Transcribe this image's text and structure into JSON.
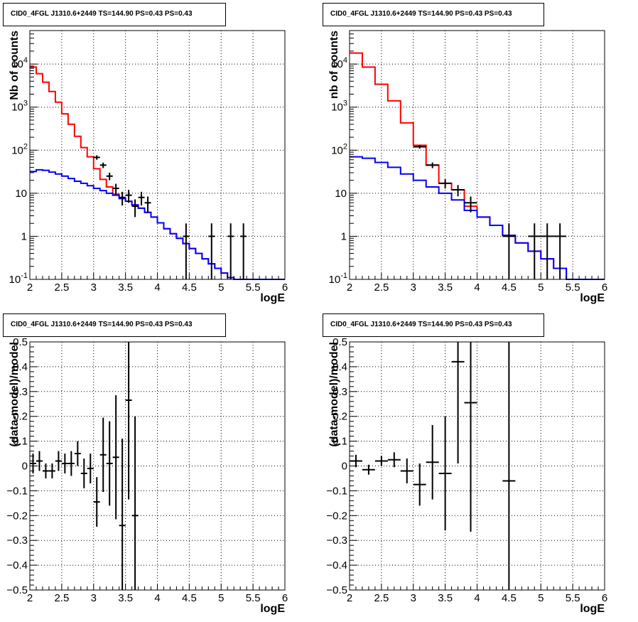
{
  "chart_data": [
    {
      "type": "histogram",
      "title": "CID0_4FGL J1310.6+2449 TS=144.90 PS=0.43 PS=0.43",
      "xlabel": "logE",
      "ylabel": "Nb of counts",
      "xlim": [
        2,
        6
      ],
      "ylim": [
        0.1,
        60000
      ],
      "ylog": true,
      "grid": true,
      "xticks": [
        "2",
        "2.5",
        "3",
        "3.5",
        "4",
        "4.5",
        "5",
        "5.5",
        "6"
      ],
      "yticks": [
        "10^-1",
        "1",
        "10",
        "10^2",
        "10^3",
        "10^4"
      ],
      "bin_width": 0.1,
      "series": [
        {
          "color": "#ff0000",
          "style": "step",
          "x": [
            2.0,
            2.1,
            2.2,
            2.3,
            2.4,
            2.5,
            2.6,
            2.7,
            2.8,
            2.9,
            3.0,
            3.1,
            3.2,
            3.3,
            3.4,
            3.5,
            3.6,
            3.7,
            3.8,
            3.9,
            4.0,
            4.1,
            4.2,
            4.3,
            4.4,
            4.5,
            4.6,
            4.7,
            4.8,
            4.9,
            5.0,
            5.1,
            5.2,
            5.3,
            5.4,
            5.5,
            5.6,
            5.7,
            5.8,
            5.9
          ],
          "values": [
            8500,
            6000,
            3800,
            2300,
            1300,
            700,
            400,
            210,
            115,
            70,
            37,
            21,
            14,
            9.5,
            7.8,
            6.5,
            5.4,
            4.5,
            3.6,
            2.8,
            2.05,
            1.5,
            1.15,
            0.9,
            0.68,
            0.52,
            0.4,
            0.3,
            0.23,
            0.18,
            0.14,
            0.11,
            0.1,
            0.1,
            0.1,
            0.1,
            0.1,
            0.1,
            0.1,
            0.1
          ]
        },
        {
          "color": "#0000ff",
          "style": "step",
          "x": [
            2.0,
            2.1,
            2.2,
            2.3,
            2.4,
            2.5,
            2.6,
            2.7,
            2.8,
            2.9,
            3.0,
            3.1,
            3.2,
            3.3,
            3.4,
            3.5,
            3.6,
            3.7,
            3.8,
            3.9,
            4.0,
            4.1,
            4.2,
            4.3,
            4.4,
            4.5,
            4.6,
            4.7,
            4.8,
            4.9,
            5.0,
            5.1,
            5.2,
            5.3,
            5.4,
            5.5,
            5.6,
            5.7,
            5.8,
            5.9
          ],
          "values": [
            32,
            35,
            34,
            31,
            28,
            25,
            22,
            19,
            17,
            15,
            13,
            11.5,
            10,
            9,
            7.5,
            6.5,
            5.3,
            4.5,
            3.6,
            2.8,
            2.05,
            1.5,
            1.15,
            0.9,
            0.68,
            0.52,
            0.4,
            0.3,
            0.23,
            0.18,
            0.14,
            0.11,
            0.1,
            0.1,
            0.1,
            0.1,
            0.1,
            0.1,
            0.1,
            0.1
          ]
        },
        {
          "color": "#000000",
          "style": "points",
          "x": [
            3.05,
            3.15,
            3.25,
            3.35,
            3.45,
            3.55,
            3.65,
            3.75,
            3.85,
            4.45,
            4.85,
            5.15,
            5.35
          ],
          "values": [
            68,
            45,
            25,
            13,
            8,
            9,
            5,
            8,
            6,
            1,
            1,
            1,
            1
          ],
          "errors": [
            8,
            6.5,
            5,
            3.6,
            2.8,
            3,
            2.2,
            2.8,
            2.4,
            1,
            1,
            1,
            1
          ]
        }
      ]
    },
    {
      "type": "histogram",
      "title": "CID0_4FGL J1310.6+2449 TS=144.90 PS=0.43 PS=0.43",
      "xlabel": "logE",
      "ylabel": "nb of counts",
      "xlim": [
        2,
        6
      ],
      "ylim": [
        0.1,
        60000
      ],
      "ylog": true,
      "grid": true,
      "xticks": [
        "2",
        "2.5",
        "3",
        "3.5",
        "4",
        "4.5",
        "5",
        "5.5",
        "6"
      ],
      "yticks": [
        "10^-1",
        "1",
        "10",
        "10^2",
        "10^3",
        "10^4"
      ],
      "bin_width": 0.2,
      "series": [
        {
          "color": "#ff0000",
          "style": "step",
          "x": [
            2.0,
            2.2,
            2.4,
            2.6,
            2.8,
            3.0,
            3.2,
            3.4,
            3.6,
            3.8,
            4.0,
            4.2,
            4.4,
            4.6,
            4.8,
            5.0,
            5.2,
            5.4,
            5.6,
            5.8
          ],
          "values": [
            18000,
            8500,
            3400,
            1400,
            430,
            130,
            45,
            17,
            12,
            5,
            2.8,
            1.8,
            1.05,
            0.7,
            0.45,
            0.3,
            0.18,
            0.1,
            0.1,
            0.1
          ]
        },
        {
          "color": "#0000ff",
          "style": "step",
          "x": [
            2.0,
            2.2,
            2.4,
            2.6,
            2.8,
            3.0,
            3.2,
            3.4,
            3.6,
            3.8,
            4.0,
            4.2,
            4.4,
            4.6,
            4.8,
            5.0,
            5.2,
            5.4,
            5.6,
            5.8
          ],
          "values": [
            70,
            65,
            52,
            40,
            28,
            20,
            14,
            10,
            7,
            4,
            2.8,
            1.8,
            1.05,
            0.7,
            0.45,
            0.3,
            0.18,
            0.1,
            0.1,
            0.1
          ]
        },
        {
          "color": "#000000",
          "style": "points",
          "x": [
            3.1,
            3.3,
            3.5,
            3.7,
            3.9,
            4.5,
            4.9,
            5.1,
            5.3
          ],
          "values": [
            120,
            45,
            17,
            12,
            6,
            1,
            1,
            1,
            1
          ],
          "errors": [
            11,
            6.7,
            4.1,
            3.5,
            2.4,
            1,
            1,
            1,
            1
          ]
        }
      ]
    },
    {
      "type": "scatter",
      "title": "CID0_4FGL J1310.6+2449 TS=144.90 PS=0.43 PS=0.43",
      "xlabel": "logE",
      "ylabel": "(data-model)/model",
      "xlim": [
        2,
        6
      ],
      "ylim": [
        -0.5,
        0.5
      ],
      "grid": true,
      "xticks": [
        "2",
        "2.5",
        "3",
        "3.5",
        "4",
        "4.5",
        "5",
        "5.5",
        "6"
      ],
      "yticks": [
        "−0.5",
        "−0.4",
        "−0.3",
        "−0.2",
        "−0.1",
        "0",
        "0.1",
        "0.2",
        "0.3",
        "0.4",
        "0.5"
      ],
      "xerr": 0.05,
      "series": [
        {
          "color": "#000000",
          "style": "points",
          "x": [
            2.05,
            2.15,
            2.25,
            2.35,
            2.45,
            2.55,
            2.65,
            2.75,
            2.85,
            2.95,
            3.05,
            3.15,
            3.25,
            3.35,
            3.45,
            3.55,
            3.65
          ],
          "values": [
            0.01,
            0.02,
            -0.02,
            -0.02,
            0.02,
            0.01,
            0.01,
            0.05,
            -0.03,
            -0.01,
            -0.145,
            0.045,
            0.01,
            0.035,
            -0.24,
            0.265,
            -0.2
          ],
          "errors": [
            0.04,
            0.04,
            0.03,
            0.03,
            0.04,
            0.04,
            0.05,
            0.05,
            0.06,
            0.06,
            0.1,
            0.15,
            0.17,
            0.25,
            0.35,
            0.4,
            0.4
          ]
        }
      ]
    },
    {
      "type": "scatter",
      "title": "CID0_4FGL J1310.6+2449 TS=144.90 PS=0.43 PS=0.43",
      "xlabel": "logE",
      "ylabel": "(data-model)/model",
      "xlim": [
        2,
        6
      ],
      "ylim": [
        -0.5,
        0.5
      ],
      "grid": true,
      "xticks": [
        "2",
        "2.5",
        "3",
        "3.5",
        "4",
        "4.5",
        "5",
        "5.5",
        "6"
      ],
      "yticks": [
        "−0.5",
        "−0.4",
        "−0.3",
        "−0.2",
        "−0.1",
        "0",
        "0.1",
        "0.2",
        "0.3",
        "0.4",
        "0.5"
      ],
      "xerr": 0.1,
      "series": [
        {
          "color": "#000000",
          "style": "points",
          "x": [
            2.1,
            2.3,
            2.5,
            2.7,
            2.9,
            3.1,
            3.3,
            3.5,
            3.7,
            3.9,
            4.5
          ],
          "values": [
            0.02,
            -0.015,
            0.02,
            0.025,
            -0.02,
            -0.075,
            0.015,
            -0.03,
            0.42,
            0.255,
            -0.06
          ],
          "errors": [
            0.025,
            0.02,
            0.02,
            0.03,
            0.05,
            0.085,
            0.15,
            0.23,
            0.41,
            0.52,
            0.9
          ]
        }
      ]
    }
  ]
}
